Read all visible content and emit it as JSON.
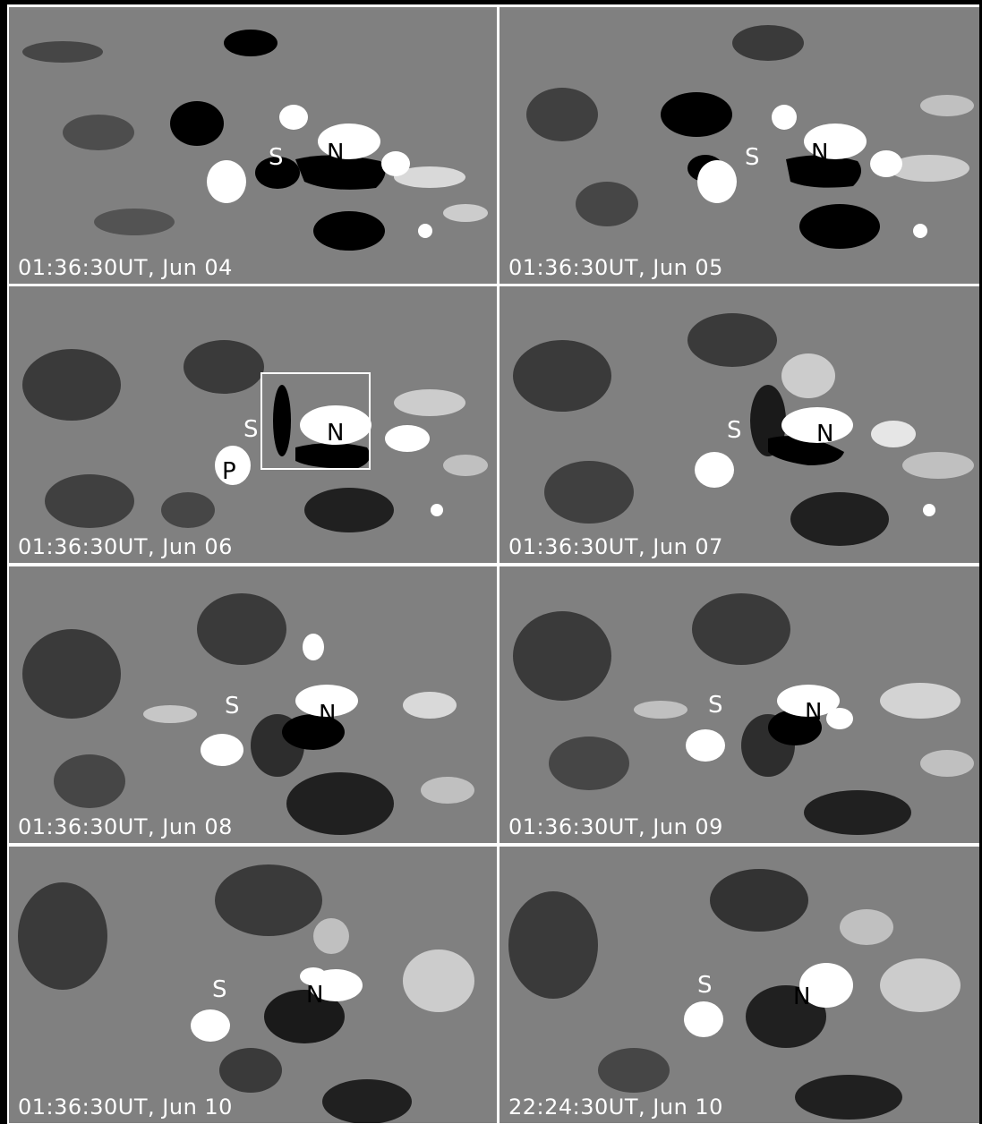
{
  "panels": [
    {
      "timestamp": "01:36:30UT, Jun 04",
      "labels": [
        "S",
        "N"
      ]
    },
    {
      "timestamp": "01:36:30UT, Jun 05",
      "labels": [
        "S",
        "N"
      ]
    },
    {
      "timestamp": "01:36:30UT, Jun 06",
      "labels": [
        "S",
        "N",
        "P"
      ]
    },
    {
      "timestamp": "01:36:30UT, Jun 07",
      "labels": [
        "S",
        "N"
      ]
    },
    {
      "timestamp": "01:36:30UT, Jun 08",
      "labels": [
        "S",
        "N"
      ]
    },
    {
      "timestamp": "01:36:30UT, Jun 09",
      "labels": [
        "S",
        "N"
      ]
    },
    {
      "timestamp": "01:36:30UT, Jun 10",
      "labels": [
        "S",
        "N"
      ]
    },
    {
      "timestamp": "22:24:30UT, Jun 10",
      "labels": [
        "S",
        "N"
      ]
    }
  ],
  "colors": {
    "background": "#808080",
    "positive_polarity": "#ffffff",
    "negative_polarity": "#000000",
    "text": "#ffffff",
    "separator": "#ffffff"
  }
}
